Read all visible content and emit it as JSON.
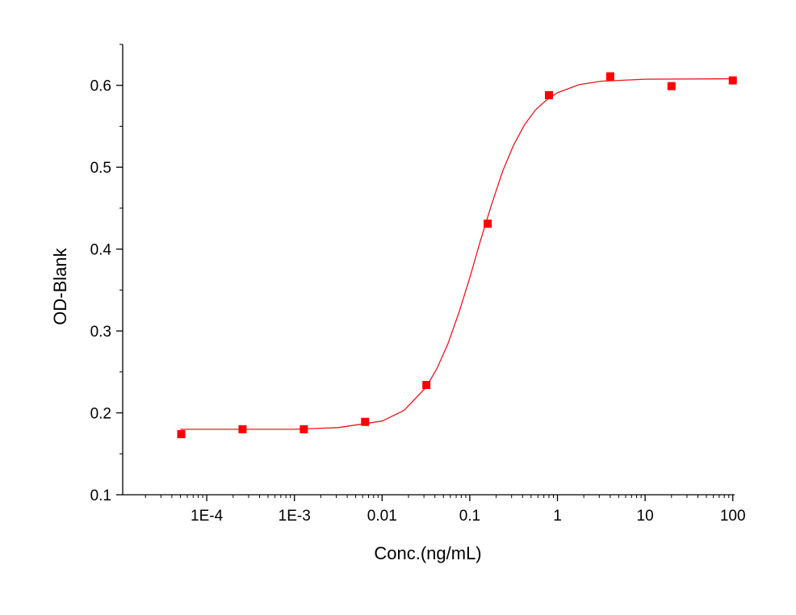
{
  "chart_data": {
    "type": "scatter",
    "x_label": "Conc.(ng/mL)",
    "y_label": "OD-Blank",
    "xscale": "log",
    "xlim": [
      1.1e-05,
      105
    ],
    "ylim": [
      0.1,
      0.65
    ],
    "xticks": [
      {
        "value": 0.0001,
        "label": "1E-4"
      },
      {
        "value": 0.001,
        "label": "1E-3"
      },
      0.01,
      0.1,
      1,
      10,
      100
    ],
    "yticks": [
      0.1,
      0.2,
      0.3,
      0.4,
      0.5,
      0.6
    ],
    "series": [
      {
        "type": "scatter",
        "color": "#ff0000",
        "x": [
          5.12e-05,
          0.000256,
          0.00128,
          0.0064,
          0.032,
          0.16,
          0.8,
          4,
          20,
          100
        ],
        "values": [
          0.174,
          0.18,
          0.18,
          0.189,
          0.234,
          0.431,
          0.588,
          0.611,
          0.599,
          0.606
        ]
      },
      {
        "type": "line",
        "color": "#e8171c",
        "x": [
          5e-05,
          0.0001,
          0.001,
          0.00316,
          0.01,
          0.0178,
          0.0316,
          0.0422,
          0.0562,
          0.075,
          0.1,
          0.133,
          0.178,
          0.237,
          0.316,
          0.422,
          0.562,
          0.75,
          1,
          1.78,
          3.16,
          10,
          100
        ],
        "values": [
          0.18,
          0.18,
          0.18,
          0.182,
          0.19,
          0.203,
          0.231,
          0.254,
          0.284,
          0.322,
          0.365,
          0.411,
          0.455,
          0.495,
          0.527,
          0.552,
          0.57,
          0.582,
          0.591,
          0.601,
          0.605,
          0.6075,
          0.608
        ]
      }
    ]
  }
}
